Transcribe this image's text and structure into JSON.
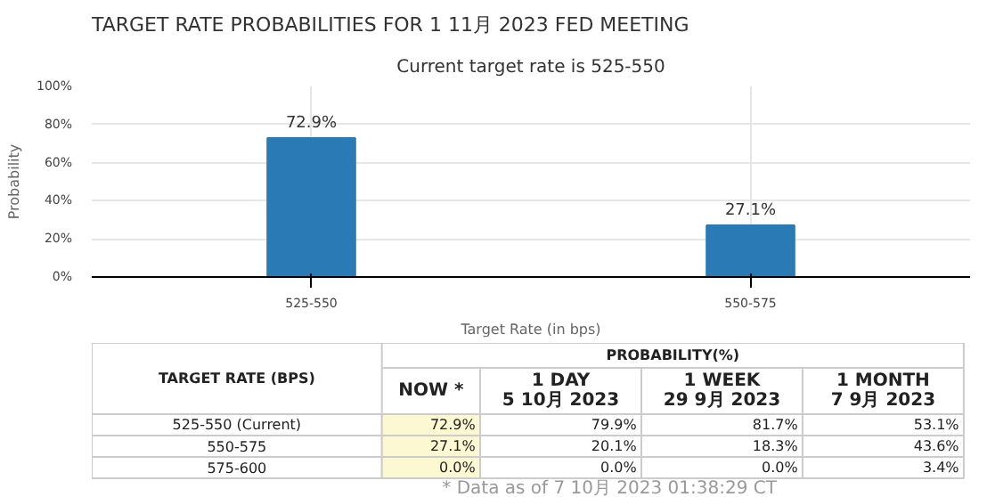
{
  "chart_data": [
    {
      "type": "bar",
      "title": "TARGET RATE PROBABILITIES FOR 1 11月 2023 FED MEETING",
      "subtitle": "Current target rate is 525-550",
      "xlabel": "Target Rate (in bps)",
      "ylabel": "Probability",
      "categories": [
        "525-550",
        "550-575"
      ],
      "values": [
        72.9,
        27.1
      ],
      "value_labels": [
        "72.9%",
        "27.1%"
      ],
      "color": "#2a7ab5",
      "ylim": [
        0,
        100
      ],
      "yticks": [
        {
          "value": 0,
          "label": "0%"
        },
        {
          "value": 20,
          "label": "20%"
        },
        {
          "value": 40,
          "label": "40%"
        },
        {
          "value": 60,
          "label": "60%"
        },
        {
          "value": 80,
          "label": "80%"
        },
        {
          "value": 100,
          "label": "100%"
        }
      ],
      "grid": true
    },
    {
      "type": "heatmap",
      "title": "PROBABILITY(%)",
      "ylabel": "TARGET RATE (BPS)",
      "categories": [
        "NOW *",
        "1 DAY\n5 10月 2023",
        "1 WEEK\n29 9月 2023",
        "1 MONTH\n7 9月 2023"
      ],
      "y_categories": [
        "525-550 (Current)",
        "550-575",
        "575-600"
      ],
      "cells": [
        [
          72.9,
          79.9,
          81.7,
          53.1
        ],
        [
          27.1,
          20.1,
          18.3,
          43.6
        ],
        [
          0.0,
          0.0,
          0.0,
          3.4
        ]
      ],
      "cell_labels": [
        [
          "72.9%",
          "79.9%",
          "81.7%",
          "53.1%"
        ],
        [
          "27.1%",
          "20.1%",
          "18.3%",
          "43.6%"
        ],
        [
          "0.0%",
          "0.0%",
          "0.0%",
          "3.4%"
        ]
      ],
      "colors": [
        "#fbf8d2",
        "#ffffff",
        "#ffffff",
        "#ffffff"
      ],
      "annotations": [
        "* Data as of 7 10月 2023 01:38:29 CT"
      ]
    }
  ]
}
